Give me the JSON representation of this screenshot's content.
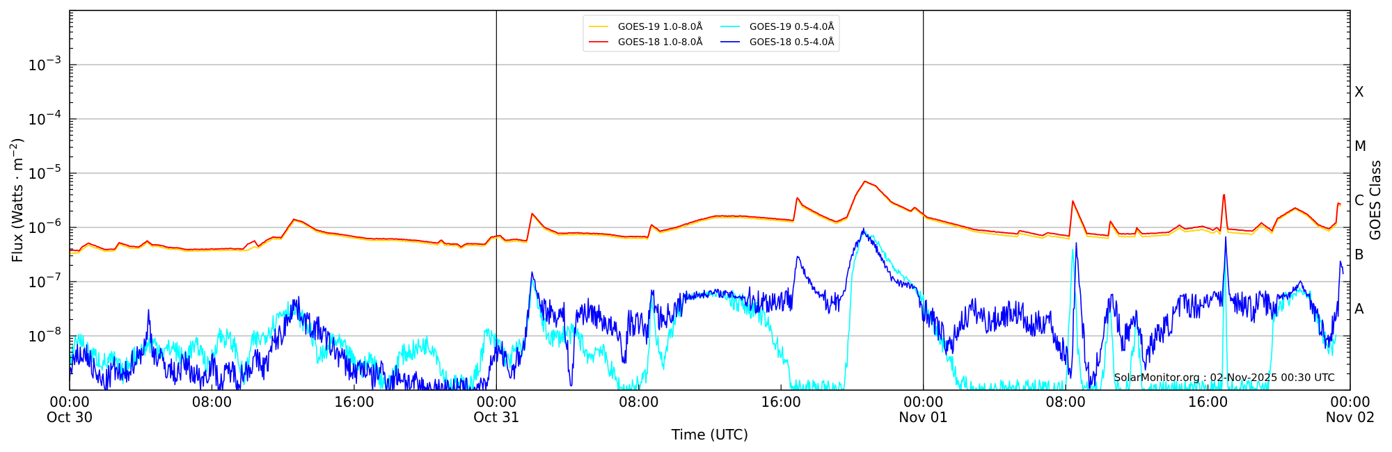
{
  "chart_data": {
    "type": "line",
    "title": "",
    "xlabel": "Time (UTC)",
    "ylabel": "Flux (Watts · m⁻²)",
    "ylabel_right": "GOES Class",
    "yscale": "log",
    "ylim": [
      1e-09,
      0.01
    ],
    "xlim_hours": [
      0,
      72
    ],
    "x_reference": "Oct 30 00:00 UTC",
    "grid": "horizontal at decades",
    "legend_position": "upper center",
    "y_ticks": [
      {
        "exp": -8,
        "label": "10",
        "sup": "−8"
      },
      {
        "exp": -7,
        "label": "10",
        "sup": "−7"
      },
      {
        "exp": -6,
        "label": "10",
        "sup": "−6"
      },
      {
        "exp": -5,
        "label": "10",
        "sup": "−5"
      },
      {
        "exp": -4,
        "label": "10",
        "sup": "−4"
      },
      {
        "exp": -3,
        "label": "10",
        "sup": "−3"
      }
    ],
    "goes_classes": [
      {
        "label": "A",
        "log_center": -7.5
      },
      {
        "label": "B",
        "log_center": -6.5
      },
      {
        "label": "C",
        "log_center": -5.5
      },
      {
        "label": "M",
        "log_center": -4.5
      },
      {
        "label": "X",
        "log_center": -3.5
      }
    ],
    "x_ticks": [
      {
        "hour": 0,
        "time": "00:00",
        "date": "Oct 30"
      },
      {
        "hour": 8,
        "time": "08:00",
        "date": ""
      },
      {
        "hour": 16,
        "time": "16:00",
        "date": ""
      },
      {
        "hour": 24,
        "time": "00:00",
        "date": "Oct 31"
      },
      {
        "hour": 32,
        "time": "08:00",
        "date": ""
      },
      {
        "hour": 40,
        "time": "16:00",
        "date": ""
      },
      {
        "hour": 48,
        "time": "00:00",
        "date": "Nov 01"
      },
      {
        "hour": 56,
        "time": "08:00",
        "date": ""
      },
      {
        "hour": 64,
        "time": "16:00",
        "date": ""
      },
      {
        "hour": 72,
        "time": "00:00",
        "date": "Nov 02"
      }
    ],
    "day_boundaries_hours": [
      24,
      48
    ],
    "watermark": "SolarMonitor.org : 02-Nov-2025 00:30 UTC",
    "series": [
      {
        "name": "GOES-19 1.0-8.0Å",
        "color": "#FFD700",
        "render_jitter": 0.01,
        "x": [
          0,
          0.5,
          0.7,
          1.05,
          2.0,
          2.55,
          2.78,
          3.4,
          3.9,
          4.36,
          4.64,
          4.95,
          5.57,
          6.2,
          6.5,
          7.7,
          9.1,
          9.75,
          10.0,
          10.4,
          10.6,
          11.1,
          11.45,
          11.9,
          12.2,
          12.65,
          13.1,
          13.9,
          14.5,
          15.1,
          16.2,
          17.0,
          18.2,
          19.5,
          20.7,
          20.9,
          21.1,
          21.8,
          22.0,
          22.3,
          23.35,
          23.7,
          24.2,
          24.5,
          25.1,
          25.7,
          26.0,
          26.7,
          27.5,
          28.5,
          30.1,
          31.2,
          32.4,
          32.5,
          32.7,
          33.2,
          34.1,
          35.4,
          36.3,
          37.8,
          39.3,
          40.7,
          40.9,
          41.2,
          42.2,
          43.1,
          43.7,
          44.2,
          44.7,
          45.3,
          46.2,
          47.3,
          47.5,
          48.2,
          49.5,
          50.9,
          52.6,
          53.3,
          53.4,
          54.7,
          55.0,
          56.2,
          56.4,
          57.2,
          58.4,
          58.5,
          59.0,
          59.9,
          60.0,
          60.3,
          61.8,
          62.4,
          62.7,
          63.7,
          64.3,
          64.5,
          64.7,
          64.9,
          65.1,
          66.5,
          67.0,
          67.6,
          67.9,
          68.9,
          69.6,
          70.2,
          70.8,
          71.2,
          71.3,
          71.5
        ],
        "log_flux": [
          -6.48,
          -6.47,
          -6.41,
          -6.33,
          -6.44,
          -6.43,
          -6.31,
          -6.38,
          -6.39,
          -6.28,
          -6.35,
          -6.35,
          -6.4,
          -6.41,
          -6.44,
          -6.43,
          -6.42,
          -6.43,
          -6.42,
          -6.36,
          -6.38,
          -6.27,
          -6.21,
          -6.22,
          -6.07,
          -5.87,
          -5.92,
          -6.08,
          -6.13,
          -6.15,
          -6.21,
          -6.24,
          -6.24,
          -6.27,
          -6.32,
          -6.26,
          -6.33,
          -6.34,
          -6.39,
          -6.33,
          -6.34,
          -6.21,
          -6.18,
          -6.27,
          -6.25,
          -6.28,
          -5.76,
          -6.03,
          -6.14,
          -6.13,
          -6.15,
          -6.2,
          -6.2,
          -6.22,
          -5.98,
          -6.1,
          -6.03,
          -5.89,
          -5.82,
          -5.82,
          -5.86,
          -5.9,
          -5.46,
          -5.62,
          -5.8,
          -5.93,
          -5.84,
          -5.42,
          -5.16,
          -5.24,
          -5.55,
          -5.72,
          -5.65,
          -5.84,
          -5.95,
          -6.08,
          -6.15,
          -6.17,
          -6.11,
          -6.2,
          -6.15,
          -6.21,
          -5.53,
          -6.16,
          -6.2,
          -5.91,
          -6.17,
          -6.17,
          -6.05,
          -6.17,
          -6.14,
          -6.01,
          -6.08,
          -6.04,
          -6.11,
          -6.06,
          -6.13,
          -5.35,
          -6.09,
          -6.13,
          -5.96,
          -6.11,
          -5.87,
          -5.66,
          -5.79,
          -5.98,
          -6.07,
          -5.95,
          -5.58,
          -5.61
        ]
      },
      {
        "name": "GOES-18 1.0-8.0Å",
        "color": "#FF0000",
        "render_jitter": 0.01,
        "x": [
          0,
          0.54,
          0.7,
          1.05,
          2.0,
          2.55,
          2.78,
          3.4,
          3.9,
          4.36,
          4.64,
          4.95,
          5.57,
          6.2,
          6.5,
          7.7,
          9.1,
          9.75,
          10.0,
          10.4,
          10.6,
          11.1,
          11.45,
          11.9,
          12.2,
          12.6,
          13.1,
          13.9,
          14.5,
          15.1,
          16.2,
          17.0,
          18.2,
          19.5,
          20.7,
          20.9,
          21.1,
          21.8,
          22.0,
          22.3,
          23.35,
          23.7,
          24.2,
          24.5,
          25.1,
          25.7,
          26.0,
          26.7,
          27.5,
          28.5,
          30.1,
          31.2,
          32.4,
          32.5,
          32.7,
          33.2,
          34.1,
          35.4,
          36.3,
          37.8,
          39.3,
          40.7,
          40.9,
          41.2,
          42.2,
          43.1,
          43.7,
          44.2,
          44.7,
          45.3,
          46.2,
          47.3,
          47.5,
          48.2,
          49.5,
          50.9,
          52.6,
          53.3,
          53.4,
          54.7,
          55.0,
          56.2,
          56.4,
          57.2,
          58.4,
          58.5,
          59.0,
          59.9,
          60.0,
          60.3,
          61.8,
          62.4,
          62.7,
          63.7,
          64.3,
          64.5,
          64.7,
          64.9,
          65.1,
          66.5,
          67.0,
          67.6,
          67.9,
          68.9,
          69.6,
          70.2,
          70.8,
          71.2,
          71.3,
          71.5
        ],
        "log_flux": [
          -6.42,
          -6.43,
          -6.36,
          -6.29,
          -6.41,
          -6.4,
          -6.28,
          -6.35,
          -6.36,
          -6.25,
          -6.32,
          -6.32,
          -6.37,
          -6.38,
          -6.41,
          -6.4,
          -6.39,
          -6.4,
          -6.31,
          -6.25,
          -6.35,
          -6.23,
          -6.18,
          -6.19,
          -6.04,
          -5.85,
          -5.9,
          -6.05,
          -6.1,
          -6.12,
          -6.18,
          -6.21,
          -6.21,
          -6.24,
          -6.29,
          -6.23,
          -6.3,
          -6.31,
          -6.36,
          -6.3,
          -6.31,
          -6.18,
          -6.15,
          -6.24,
          -6.22,
          -6.25,
          -5.74,
          -6.0,
          -6.11,
          -6.1,
          -6.12,
          -6.17,
          -6.17,
          -6.19,
          -5.95,
          -6.07,
          -6.0,
          -5.86,
          -5.79,
          -5.79,
          -5.83,
          -5.87,
          -5.44,
          -5.59,
          -5.77,
          -5.9,
          -5.81,
          -5.4,
          -5.15,
          -5.23,
          -5.53,
          -5.7,
          -5.63,
          -5.81,
          -5.92,
          -6.04,
          -6.1,
          -6.12,
          -6.06,
          -6.15,
          -6.1,
          -6.16,
          -5.51,
          -6.11,
          -6.15,
          -5.88,
          -6.12,
          -6.12,
          -6.01,
          -6.12,
          -6.09,
          -5.96,
          -6.03,
          -5.98,
          -6.05,
          -6.0,
          -6.07,
          -5.33,
          -6.03,
          -6.07,
          -5.92,
          -6.06,
          -5.84,
          -5.64,
          -5.76,
          -5.95,
          -6.03,
          -5.91,
          -5.55,
          -5.58
        ]
      },
      {
        "name": "GOES-19 0.5-4.0Å",
        "color": "#00FFFF",
        "render_jitter": 0.12,
        "x": [
          0,
          0.3,
          0.6,
          1.0,
          1.5,
          2.0,
          2.5,
          3.0,
          3.5,
          4.0,
          4.4,
          4.8,
          5.3,
          5.8,
          6.3,
          6.8,
          7.3,
          7.8,
          8.4,
          8.9,
          9.3,
          9.8,
          10.3,
          10.8,
          11.3,
          11.8,
          12.2,
          12.7,
          13.2,
          13.6,
          14.0,
          14.4,
          14.8,
          15.3,
          15.6,
          16.0,
          16.5,
          17.0,
          17.5,
          18.0,
          18.5,
          19.0,
          19.5,
          20.0,
          20.5,
          21.0,
          21.4,
          21.8,
          22.2,
          22.6,
          23.0,
          23.4,
          23.8,
          24.2,
          24.6,
          25.0,
          25.6,
          26.0,
          26.4,
          26.8,
          27.3,
          28.0,
          28.6,
          29.2,
          29.8,
          30.4,
          31.0,
          31.5,
          32.0,
          32.5,
          32.7,
          33.0,
          33.4,
          34.0,
          34.8,
          35.6,
          36.3,
          37.0,
          37.8,
          38.4,
          39.0,
          39.4,
          39.8,
          40.2,
          40.6,
          40.9,
          41.2,
          41.6,
          42.0,
          42.3,
          42.6,
          43.0,
          43.4,
          43.7,
          44.0,
          44.6,
          45.3,
          46.2,
          47.0,
          47.5,
          47.9,
          48.3,
          48.8,
          49.2,
          49.6,
          50.0,
          51.0,
          52.0,
          53.0,
          54.0,
          55.0,
          56.0,
          56.4,
          56.7,
          57.0,
          58.0,
          58.5,
          58.8,
          59.5,
          60.0,
          60.3,
          61.0,
          62.0,
          63.0,
          64.0,
          64.8,
          64.95,
          65.1,
          66.0,
          67.0,
          67.4,
          67.7,
          68.0,
          68.5,
          69.2,
          69.7,
          70.2,
          70.7,
          71.0,
          71.2
        ],
        "log_flux": [
          -8.6,
          -8.1,
          -8.05,
          -8.3,
          -8.4,
          -8.5,
          -8.45,
          -8.7,
          -8.4,
          -8.3,
          -8.15,
          -8.15,
          -8.3,
          -8.2,
          -8.4,
          -8.25,
          -8.2,
          -8.6,
          -8.0,
          -8.05,
          -8.2,
          -8.8,
          -8.1,
          -8.05,
          -7.85,
          -7.6,
          -7.5,
          -7.55,
          -7.75,
          -7.95,
          -8.4,
          -8.35,
          -8.05,
          -8.2,
          -8.3,
          -8.5,
          -8.6,
          -8.4,
          -8.8,
          -8.9,
          -8.4,
          -8.3,
          -8.25,
          -8.15,
          -8.2,
          -8.7,
          -8.9,
          -8.9,
          -8.9,
          -8.9,
          -8.6,
          -7.95,
          -8.1,
          -8.15,
          -8.5,
          -8.3,
          -8.15,
          -6.95,
          -7.5,
          -7.95,
          -8.05,
          -7.95,
          -8.0,
          -8.4,
          -8.2,
          -8.6,
          -9.0,
          -9.0,
          -8.9,
          -8.7,
          -7.3,
          -8.0,
          -8.5,
          -7.7,
          -7.3,
          -7.24,
          -7.22,
          -7.28,
          -7.4,
          -7.5,
          -7.65,
          -7.9,
          -8.2,
          -8.4,
          -8.9,
          -9.0,
          -9.0,
          -9.0,
          -9.0,
          -9.0,
          -9.0,
          -9.0,
          -9.0,
          -8.6,
          -6.8,
          -6.07,
          -6.22,
          -6.7,
          -6.95,
          -7.1,
          -7.35,
          -7.6,
          -7.9,
          -8.2,
          -8.5,
          -8.9,
          -9.0,
          -9.0,
          -9.0,
          -9.0,
          -9.0,
          -9.0,
          -6.35,
          -8.3,
          -9.0,
          -9.0,
          -7.5,
          -9.0,
          -9.0,
          -7.7,
          -9.0,
          -9.0,
          -9.0,
          -9.0,
          -9.0,
          -9.0,
          -6.25,
          -9.0,
          -9.0,
          -9.0,
          -9.0,
          -7.65,
          -7.45,
          -7.35,
          -7.15,
          -7.3,
          -7.75,
          -8.2,
          -8.2,
          -8.1
        ]
      },
      {
        "name": "GOES-18 0.5-4.0Å",
        "color": "#0000FF",
        "render_jitter": 0.15,
        "x": [
          0,
          0.5,
          1.0,
          1.5,
          2.0,
          2.5,
          3.0,
          3.5,
          4.0,
          4.3,
          4.45,
          4.7,
          5.0,
          5.5,
          6.0,
          6.5,
          7.0,
          7.5,
          8.0,
          8.5,
          9.0,
          9.5,
          10.0,
          10.5,
          11.0,
          11.5,
          12.0,
          12.3,
          12.6,
          13.0,
          13.3,
          13.7,
          14.1,
          14.5,
          15.0,
          15.5,
          16.0,
          16.5,
          17.0,
          17.5,
          18.0,
          18.5,
          19.0,
          19.5,
          20.0,
          21.0,
          22.0,
          23.0,
          23.5,
          23.8,
          24.2,
          24.8,
          25.6,
          26.0,
          26.5,
          27.2,
          27.8,
          28.2,
          28.5,
          29.2,
          30.1,
          31.0,
          31.2,
          31.4,
          32.3,
          32.5,
          32.7,
          33.2,
          34.0,
          34.8,
          36.3,
          37.8,
          38.6,
          39.3,
          40.6,
          40.9,
          41.4,
          42.0,
          42.9,
          43.5,
          44.0,
          44.6,
          45.3,
          46.2,
          47.0,
          47.5,
          47.9,
          48.2,
          48.9,
          49.5,
          50.0,
          50.8,
          51.7,
          53.0,
          53.6,
          53.9,
          55.1,
          55.5,
          56.1,
          56.3,
          56.6,
          57.1,
          57.5,
          58.0,
          58.6,
          59.2,
          60.0,
          60.4,
          61.1,
          61.9,
          62.5,
          63.5,
          64.4,
          64.8,
          65.0,
          65.2,
          66.0,
          66.6,
          67.0,
          67.7,
          68.0,
          68.5,
          69.2,
          69.7,
          70.2,
          70.7,
          71.1,
          71.3,
          71.45,
          71.6
        ],
        "log_flux": [
          -8.7,
          -8.35,
          -8.35,
          -8.75,
          -8.9,
          -8.6,
          -8.8,
          -8.5,
          -8.3,
          -8.15,
          -7.65,
          -8.3,
          -8.4,
          -8.6,
          -8.7,
          -8.5,
          -8.7,
          -8.8,
          -8.5,
          -8.9,
          -8.6,
          -8.8,
          -8.6,
          -8.45,
          -8.6,
          -8.1,
          -7.95,
          -7.6,
          -7.42,
          -7.55,
          -7.75,
          -7.85,
          -7.9,
          -8.1,
          -8.3,
          -8.5,
          -8.7,
          -8.55,
          -8.8,
          -8.6,
          -8.9,
          -8.7,
          -8.85,
          -8.9,
          -9.0,
          -9.0,
          -9.0,
          -9.0,
          -9.0,
          -8.3,
          -8.25,
          -8.7,
          -8.13,
          -6.86,
          -7.45,
          -7.6,
          -7.62,
          -9.0,
          -7.59,
          -7.54,
          -7.73,
          -8.07,
          -8.6,
          -7.76,
          -7.8,
          -8.0,
          -7.19,
          -7.7,
          -7.55,
          -7.27,
          -7.2,
          -7.28,
          -7.37,
          -7.37,
          -7.31,
          -6.52,
          -6.9,
          -7.23,
          -7.39,
          -7.26,
          -6.5,
          -6.06,
          -6.35,
          -6.93,
          -7.07,
          -7.09,
          -7.45,
          -7.56,
          -7.88,
          -8.27,
          -7.8,
          -7.5,
          -7.76,
          -7.54,
          -7.62,
          -7.88,
          -7.67,
          -8.13,
          -8.38,
          -8.85,
          -6.31,
          -8.42,
          -9.0,
          -8.13,
          -7.23,
          -8.13,
          -7.58,
          -8.46,
          -8.0,
          -7.76,
          -7.41,
          -7.45,
          -7.23,
          -7.38,
          -6.23,
          -7.28,
          -7.41,
          -7.54,
          -7.25,
          -7.58,
          -7.25,
          -7.26,
          -7.03,
          -7.26,
          -7.7,
          -8.13,
          -7.76,
          -7.54,
          -6.58,
          -6.85
        ]
      }
    ]
  }
}
